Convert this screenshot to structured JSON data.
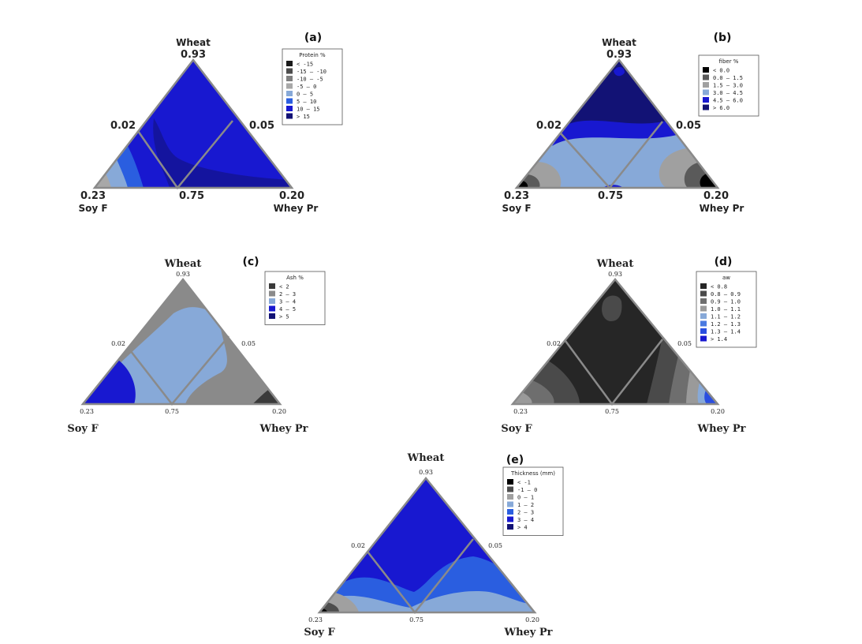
{
  "chart_data": [
    {
      "type": "ternary-contour",
      "panel_label": "(a)",
      "vertices": {
        "top": "Wheat",
        "left": "Soy F",
        "right": "Whey Pr"
      },
      "vertex_values": {
        "top": "0.93",
        "left": "0.23",
        "right": "0.20"
      },
      "edge_values": {
        "left_mid": "0.02",
        "right_mid": "0.05",
        "bottom_mid": "0.75"
      },
      "legend": {
        "title": "Protein %",
        "entries": [
          {
            "range": "<   -15",
            "color": "#1a1a1a"
          },
          {
            "range": "-15  –  -10",
            "color": "#4d4d4d"
          },
          {
            "range": "-10  –   -5",
            "color": "#7f7f7f"
          },
          {
            "range": "-5  –    0",
            "color": "#a8a8a8"
          },
          {
            "range": "0  –    5",
            "color": "#87a9d8"
          },
          {
            "range": "5  –   10",
            "color": "#2a5ee0"
          },
          {
            "range": "10  –   15",
            "color": "#1818d0"
          },
          {
            "range": ">   15",
            "color": "#121275"
          }
        ]
      }
    },
    {
      "type": "ternary-contour",
      "panel_label": "(b)",
      "vertices": {
        "top": "Wheat",
        "left": "Soy F",
        "right": "Whey Pr"
      },
      "vertex_values": {
        "top": "0.93",
        "left": "0.23",
        "right": "0.20"
      },
      "edge_values": {
        "left_mid": "0.02",
        "right_mid": "0.05",
        "bottom_mid": "0.75"
      },
      "legend": {
        "title": "fiber %",
        "entries": [
          {
            "range": "<   0.0",
            "color": "#000000"
          },
          {
            "range": "0.0  –  1.5",
            "color": "#5a5a5a"
          },
          {
            "range": "1.5  –  3.0",
            "color": "#a0a0a0"
          },
          {
            "range": "3.0  –  4.5",
            "color": "#87a9d8"
          },
          {
            "range": "4.5  –  6.0",
            "color": "#1818d0"
          },
          {
            "range": ">   6.0",
            "color": "#121275"
          }
        ]
      }
    },
    {
      "type": "ternary-contour",
      "panel_label": "(c)",
      "vertices": {
        "top": "Wheat",
        "left": "Soy F",
        "right": "Whey Pr"
      },
      "vertex_values": {
        "top": "0.93",
        "left": "0.23",
        "right": "0.20"
      },
      "edge_values": {
        "left_mid": "0.02",
        "right_mid": "0.05",
        "bottom_mid": "0.75"
      },
      "legend": {
        "title": "Ash %",
        "entries": [
          {
            "range": "<   2",
            "color": "#3a3a3a"
          },
          {
            "range": "2  –  3",
            "color": "#8a8a8a"
          },
          {
            "range": "3  –  4",
            "color": "#87a9d8"
          },
          {
            "range": "4  –  5",
            "color": "#1818d0"
          },
          {
            "range": ">   5",
            "color": "#121275"
          }
        ]
      }
    },
    {
      "type": "ternary-contour",
      "panel_label": "(d)",
      "vertices": {
        "top": "Wheat",
        "left": "Soy F",
        "right": "Whey Pr"
      },
      "vertex_values": {
        "top": "0.93",
        "left": "0.23",
        "right": "0.20"
      },
      "edge_values": {
        "left_mid": "0.02",
        "right_mid": "0.05",
        "bottom_mid": "0.75"
      },
      "legend": {
        "title": "aw",
        "entries": [
          {
            "range": "<   0.8",
            "color": "#262626"
          },
          {
            "range": "0.8  –  0.9",
            "color": "#4a4a4a"
          },
          {
            "range": "0.9  –  1.0",
            "color": "#6e6e6e"
          },
          {
            "range": "1.0  –  1.1",
            "color": "#9a9a9a"
          },
          {
            "range": "1.1  –  1.2",
            "color": "#87a9d8"
          },
          {
            "range": "1.2  –  1.3",
            "color": "#4a7ae0"
          },
          {
            "range": "1.3  –  1.4",
            "color": "#2a4ee0"
          },
          {
            "range": ">   1.4",
            "color": "#1818d0"
          }
        ]
      }
    },
    {
      "type": "ternary-contour",
      "panel_label": "(e)",
      "vertices": {
        "top": "Wheat",
        "left": "Soy F",
        "right": "Whey Pr"
      },
      "vertex_values": {
        "top": "0.93",
        "left": "0.23",
        "right": "0.20"
      },
      "edge_values": {
        "left_mid": "0.02",
        "right_mid": "0.05",
        "bottom_mid": "0.75"
      },
      "legend": {
        "title": "Thickness (mm)",
        "entries": [
          {
            "range": "<   -1",
            "color": "#000000"
          },
          {
            "range": "-1  –   0",
            "color": "#4d4d4d"
          },
          {
            "range": "0  –   1",
            "color": "#a0a0a0"
          },
          {
            "range": "1  –   2",
            "color": "#87a9d8"
          },
          {
            "range": "2  –   3",
            "color": "#2a5ee0"
          },
          {
            "range": "3  –   4",
            "color": "#1818d0"
          },
          {
            "range": ">   4",
            "color": "#121275"
          }
        ]
      }
    }
  ]
}
